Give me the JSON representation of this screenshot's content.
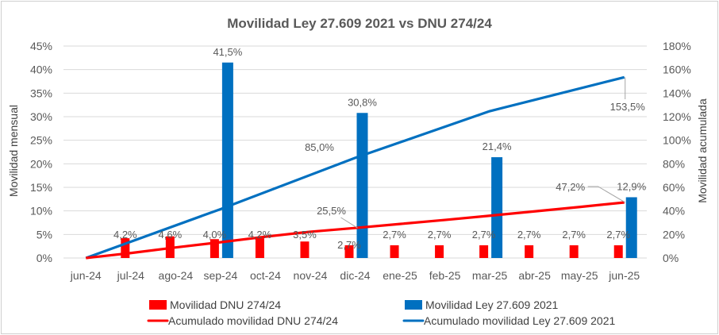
{
  "chart_data": {
    "type": "bar",
    "title": "Movilidad Ley 27.609 2021 vs DNU 274/24",
    "ylabel": "Movilidad mensual",
    "y2label": "Movilidad acumulada",
    "xlabel": "",
    "categories": [
      "jun-24",
      "jul-24",
      "ago-24",
      "sep-24",
      "oct-24",
      "nov-24",
      "dic-24",
      "ene-25",
      "feb-25",
      "mar-25",
      "abr-25",
      "may-25",
      "jun-25"
    ],
    "ylim": [
      0,
      45
    ],
    "yticks": [
      "0%",
      "5%",
      "10%",
      "15%",
      "20%",
      "25%",
      "30%",
      "35%",
      "40%",
      "45%"
    ],
    "y2lim": [
      0,
      180
    ],
    "y2ticks": [
      "0%",
      "20%",
      "40%",
      "60%",
      "80%",
      "100%",
      "120%",
      "140%",
      "160%",
      "180%"
    ],
    "grid": true,
    "legend_position": "bottom",
    "series": [
      {
        "name": "Movilidad DNU 274/24",
        "kind": "bar",
        "axis": "left",
        "color": "#FF0000",
        "values": [
          null,
          4.2,
          4.6,
          4.0,
          4.2,
          3.5,
          2.7,
          2.7,
          2.7,
          2.7,
          2.7,
          2.7,
          2.7
        ],
        "labels": [
          "",
          "4,2%",
          "4,6%",
          "4,0%",
          "4,2%",
          "3,5%",
          "2,7%",
          "2,7%",
          "2,7%",
          "2,7%",
          "2,7%",
          "2,7%",
          "2,7%"
        ]
      },
      {
        "name": "Movilidad Ley 27.609 2021",
        "kind": "bar",
        "axis": "left",
        "color": "#0070C0",
        "values": [
          null,
          null,
          null,
          41.5,
          null,
          null,
          30.8,
          null,
          null,
          21.4,
          null,
          null,
          12.9
        ],
        "labels": [
          "",
          "",
          "",
          "41,5%",
          "",
          "",
          "30,8%",
          "",
          "",
          "21,4%",
          "",
          "",
          "12,9%"
        ]
      },
      {
        "name": "Acumulado movilidad DNU 274/24",
        "kind": "line",
        "axis": "right",
        "color": "#FF0000",
        "values": [
          0,
          4.2,
          9.0,
          13.4,
          18.1,
          22.3,
          25.5,
          28.9,
          32.3,
          35.9,
          39.6,
          43.3,
          47.2
        ],
        "labels": [
          "",
          "",
          "",
          "",
          "",
          "",
          "25,5%",
          "",
          "",
          "",
          "",
          "",
          "47,2%"
        ]
      },
      {
        "name": "Acumulado movilidad Ley 27.609 2021",
        "kind": "line",
        "axis": "right",
        "color": "#0070C0",
        "values": [
          0,
          13.8,
          27.7,
          41.5,
          56.0,
          70.5,
          85.0,
          98.2,
          111.4,
          124.7,
          134.3,
          143.9,
          153.5
        ],
        "labels": [
          "",
          "",
          "",
          "",
          "",
          "",
          "85,0%",
          "",
          "",
          "",
          "",
          "",
          "153,5%"
        ]
      }
    ]
  }
}
